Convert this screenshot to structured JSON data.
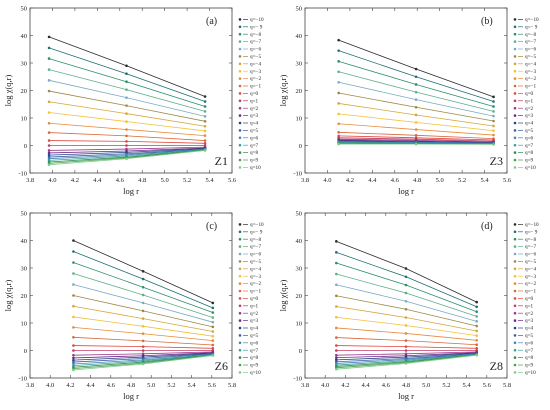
{
  "figure": {
    "colors": [
      "#2b2b2b",
      "#1f6f74",
      "#2a8f6a",
      "#5fb08a",
      "#7aa9c4",
      "#9b8a45",
      "#d6a63a",
      "#f0c23b",
      "#e88a3c",
      "#d8683a",
      "#e0463c",
      "#c23b63",
      "#9b3b8e",
      "#6a2c8a",
      "#2a3f8a",
      "#375fa6",
      "#3f86b8",
      "#3aa39a",
      "#2f8a55",
      "#49a04a",
      "#7ccc8a"
    ]
  },
  "chart_data": [
    {
      "type": "line",
      "panel": "a",
      "panel_tag": "(a)",
      "name": "Z1",
      "xlabel": "log r",
      "ylabel": "log χ(q,r)",
      "xlim": [
        3.8,
        5.6
      ],
      "ylim": [
        -10,
        50
      ],
      "xticks": [
        "3.8",
        "4.0",
        "4.2",
        "4.4",
        "4.6",
        "4.8",
        "5.0",
        "5.2",
        "5.4",
        "5.6"
      ],
      "yticks": [
        "-10",
        "0",
        "10",
        "20",
        "30",
        "40",
        "50"
      ],
      "x": [
        3.97,
        4.66,
        5.36
      ],
      "series": [
        {
          "name": "q=−10",
          "values": [
            39.5,
            29.0,
            17.8
          ]
        },
        {
          "name": "q=− 9",
          "values": [
            35.5,
            26.1,
            16.0
          ]
        },
        {
          "name": "q=−8",
          "values": [
            31.6,
            23.2,
            14.2
          ]
        },
        {
          "name": "q=−7",
          "values": [
            27.6,
            20.3,
            12.4
          ]
        },
        {
          "name": "q=−6",
          "values": [
            23.7,
            17.4,
            10.6
          ]
        },
        {
          "name": "q=−5",
          "values": [
            19.8,
            14.5,
            8.8
          ]
        },
        {
          "name": "q=−4",
          "values": [
            15.9,
            11.6,
            7.0
          ]
        },
        {
          "name": "q=−3",
          "values": [
            12.0,
            8.7,
            5.3
          ]
        },
        {
          "name": "q=−2",
          "values": [
            8.1,
            5.8,
            3.6
          ]
        },
        {
          "name": "q=−1",
          "values": [
            4.7,
            3.5,
            1.8
          ]
        },
        {
          "name": "q=0",
          "values": [
            1.8,
            1.5,
            0.8
          ]
        },
        {
          "name": "q=1",
          "values": [
            0.0,
            0.0,
            0.0
          ]
        },
        {
          "name": "q=2",
          "values": [
            -1.8,
            -1.3,
            -0.6
          ]
        },
        {
          "name": "q=3",
          "values": [
            -2.7,
            -2.0,
            -0.9
          ]
        },
        {
          "name": "q=4",
          "values": [
            -3.5,
            -2.5,
            -1.1
          ]
        },
        {
          "name": "q=5",
          "values": [
            -4.2,
            -3.0,
            -1.3
          ]
        },
        {
          "name": "q=6",
          "values": [
            -4.8,
            -3.4,
            -1.4
          ]
        },
        {
          "name": "q=7",
          "values": [
            -5.4,
            -3.8,
            -1.5
          ]
        },
        {
          "name": "q=8",
          "values": [
            -6.0,
            -4.2,
            -1.6
          ]
        },
        {
          "name": "q=9",
          "values": [
            -6.5,
            -4.5,
            -1.7
          ]
        },
        {
          "name": "q=10",
          "values": [
            -7.0,
            -4.8,
            -1.8
          ]
        }
      ]
    },
    {
      "type": "line",
      "panel": "b",
      "panel_tag": "(b)",
      "name": "Z3",
      "xlabel": "log r",
      "ylabel": "log χ(q,r)",
      "xlim": [
        3.8,
        5.6
      ],
      "ylim": [
        -10,
        50
      ],
      "xticks": [
        "3.8",
        "4.0",
        "4.2",
        "4.4",
        "4.6",
        "4.8",
        "5.0",
        "5.2",
        "5.4",
        "5.6"
      ],
      "yticks": [
        "-10",
        "0",
        "10",
        "20",
        "30",
        "40",
        "50"
      ],
      "x": [
        4.1,
        4.79,
        5.48
      ],
      "series": [
        {
          "name": "q=−10",
          "values": [
            38.3,
            27.8,
            17.7
          ]
        },
        {
          "name": "q=− 9",
          "values": [
            34.5,
            25.0,
            16.0
          ]
        },
        {
          "name": "q=−8",
          "values": [
            30.6,
            22.2,
            14.2
          ]
        },
        {
          "name": "q=−7",
          "values": [
            26.8,
            19.4,
            12.4
          ]
        },
        {
          "name": "q=−6",
          "values": [
            23.0,
            16.7,
            10.7
          ]
        },
        {
          "name": "q=−5",
          "values": [
            19.1,
            13.9,
            8.9
          ]
        },
        {
          "name": "q=−4",
          "values": [
            15.3,
            11.1,
            7.1
          ]
        },
        {
          "name": "q=−3",
          "values": [
            11.5,
            8.4,
            5.4
          ]
        },
        {
          "name": "q=−2",
          "values": [
            7.9,
            5.8,
            3.8
          ]
        },
        {
          "name": "q=−1",
          "values": [
            4.8,
            3.7,
            2.5
          ]
        },
        {
          "name": "q=0",
          "values": [
            3.5,
            2.8,
            2.0
          ]
        },
        {
          "name": "q=1",
          "values": [
            2.8,
            2.3,
            1.6
          ]
        },
        {
          "name": "q=2",
          "values": [
            2.3,
            1.9,
            1.3
          ]
        },
        {
          "name": "q=3",
          "values": [
            2.0,
            1.6,
            1.1
          ]
        },
        {
          "name": "q=4",
          "values": [
            1.7,
            1.4,
            1.0
          ]
        },
        {
          "name": "q=5",
          "values": [
            1.5,
            1.2,
            0.9
          ]
        },
        {
          "name": "q=6",
          "values": [
            1.3,
            1.1,
            0.8
          ]
        },
        {
          "name": "q=7",
          "values": [
            1.1,
            0.9,
            0.7
          ]
        },
        {
          "name": "q=8",
          "values": [
            0.9,
            0.8,
            0.6
          ]
        },
        {
          "name": "q=9",
          "values": [
            0.7,
            0.6,
            0.5
          ]
        },
        {
          "name": "q=10",
          "values": [
            0.5,
            0.5,
            0.4
          ]
        }
      ]
    },
    {
      "type": "line",
      "panel": "c",
      "panel_tag": "(c)",
      "name": "Z6",
      "xlabel": "log r",
      "ylabel": "log χ(q,r)",
      "xlim": [
        3.8,
        5.8
      ],
      "ylim": [
        -10,
        50
      ],
      "xticks": [
        "3.8",
        "4.0",
        "4.2",
        "4.4",
        "4.6",
        "4.8",
        "5.0",
        "5.2",
        "5.4",
        "5.6",
        "5.8"
      ],
      "yticks": [
        "-10",
        "0",
        "10",
        "20",
        "30",
        "40",
        "50"
      ],
      "x": [
        4.23,
        4.92,
        5.61
      ],
      "series": [
        {
          "name": "q=−10",
          "values": [
            40.0,
            28.8,
            17.3
          ]
        },
        {
          "name": "q=− 9",
          "values": [
            36.0,
            26.0,
            15.5
          ]
        },
        {
          "name": "q=−8",
          "values": [
            32.0,
            23.0,
            13.8
          ]
        },
        {
          "name": "q=−7",
          "values": [
            28.0,
            20.2,
            12.0
          ]
        },
        {
          "name": "q=−6",
          "values": [
            24.0,
            17.3,
            10.3
          ]
        },
        {
          "name": "q=−5",
          "values": [
            20.0,
            14.4,
            8.6
          ]
        },
        {
          "name": "q=−4",
          "values": [
            16.1,
            11.6,
            6.9
          ]
        },
        {
          "name": "q=−3",
          "values": [
            12.2,
            8.8,
            5.2
          ]
        },
        {
          "name": "q=−2",
          "values": [
            8.4,
            6.1,
            3.6
          ]
        },
        {
          "name": "q=−1",
          "values": [
            4.8,
            3.5,
            2.0
          ]
        },
        {
          "name": "q=0",
          "values": [
            1.8,
            1.4,
            0.8
          ]
        },
        {
          "name": "q=1",
          "values": [
            0.0,
            0.0,
            0.0
          ]
        },
        {
          "name": "q=2",
          "values": [
            -1.7,
            -1.2,
            -0.5
          ]
        },
        {
          "name": "q=3",
          "values": [
            -2.7,
            -1.9,
            -0.8
          ]
        },
        {
          "name": "q=4",
          "values": [
            -3.5,
            -2.4,
            -1.0
          ]
        },
        {
          "name": "q=5",
          "values": [
            -4.2,
            -2.9,
            -1.2
          ]
        },
        {
          "name": "q=6",
          "values": [
            -4.9,
            -3.4,
            -1.4
          ]
        },
        {
          "name": "q=7",
          "values": [
            -5.5,
            -3.8,
            -1.5
          ]
        },
        {
          "name": "q=8",
          "values": [
            -6.1,
            -4.2,
            -1.6
          ]
        },
        {
          "name": "q=9",
          "values": [
            -6.6,
            -4.6,
            -1.7
          ]
        },
        {
          "name": "q=10",
          "values": [
            -7.1,
            -4.9,
            -1.8
          ]
        }
      ]
    },
    {
      "type": "line",
      "panel": "d",
      "panel_tag": "(d)",
      "name": "Z8",
      "xlabel": "log r",
      "ylabel": "log χ(q,r)",
      "xlim": [
        3.8,
        5.8
      ],
      "ylim": [
        -10,
        50
      ],
      "xticks": [
        "3.8",
        "4.0",
        "4.2",
        "4.4",
        "4.6",
        "4.8",
        "5.0",
        "5.2",
        "5.4",
        "5.6",
        "5.8"
      ],
      "yticks": [
        "-10",
        "0",
        "10",
        "20",
        "30",
        "40",
        "50"
      ],
      "x": [
        4.11,
        4.8,
        5.5
      ],
      "series": [
        {
          "name": "q=−10",
          "values": [
            39.7,
            29.8,
            17.6
          ]
        },
        {
          "name": "q=− 9",
          "values": [
            35.7,
            26.8,
            15.9
          ]
        },
        {
          "name": "q=−8",
          "values": [
            31.8,
            23.8,
            14.1
          ]
        },
        {
          "name": "q=−7",
          "values": [
            27.8,
            20.9,
            12.4
          ]
        },
        {
          "name": "q=−6",
          "values": [
            23.9,
            17.9,
            10.6
          ]
        },
        {
          "name": "q=−5",
          "values": [
            19.9,
            15.0,
            8.9
          ]
        },
        {
          "name": "q=−4",
          "values": [
            16.0,
            12.0,
            7.1
          ]
        },
        {
          "name": "q=−3",
          "values": [
            12.1,
            9.1,
            5.4
          ]
        },
        {
          "name": "q=−2",
          "values": [
            8.2,
            6.2,
            3.7
          ]
        },
        {
          "name": "q=−1",
          "values": [
            4.7,
            3.6,
            2.1
          ]
        },
        {
          "name": "q=0",
          "values": [
            1.8,
            1.4,
            0.8
          ]
        },
        {
          "name": "q=1",
          "values": [
            0.0,
            0.0,
            0.0
          ]
        },
        {
          "name": "q=2",
          "values": [
            -1.7,
            -1.2,
            -0.5
          ]
        },
        {
          "name": "q=3",
          "values": [
            -2.6,
            -1.9,
            -0.8
          ]
        },
        {
          "name": "q=4",
          "values": [
            -3.4,
            -2.4,
            -1.0
          ]
        },
        {
          "name": "q=5",
          "values": [
            -4.1,
            -2.9,
            -1.2
          ]
        },
        {
          "name": "q=6",
          "values": [
            -4.7,
            -3.3,
            -1.3
          ]
        },
        {
          "name": "q=7",
          "values": [
            -5.3,
            -3.7,
            -1.4
          ]
        },
        {
          "name": "q=8",
          "values": [
            -5.8,
            -4.1,
            -1.5
          ]
        },
        {
          "name": "q=9",
          "values": [
            -6.3,
            -4.4,
            -1.6
          ]
        },
        {
          "name": "q=10",
          "values": [
            -6.8,
            -4.7,
            -1.7
          ]
        }
      ]
    }
  ]
}
